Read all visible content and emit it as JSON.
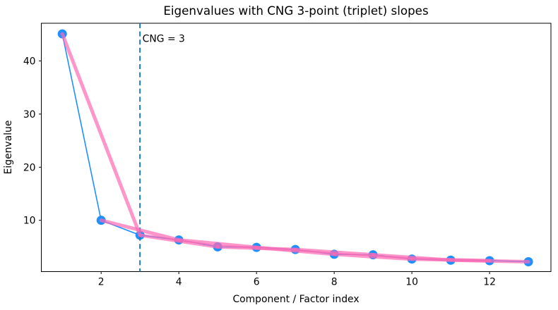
{
  "chart_data": {
    "type": "line",
    "title": "Eigenvalues with CNG 3-point (triplet) slopes",
    "xlabel": "Component / Factor index",
    "ylabel": "Eigenvalue",
    "x": [
      1,
      2,
      3,
      4,
      5,
      6,
      7,
      8,
      9,
      10,
      11,
      12,
      13
    ],
    "eigenvalues": [
      45.1,
      10.0,
      7.2,
      6.3,
      5.0,
      4.9,
      4.5,
      3.6,
      3.5,
      2.7,
      2.5,
      2.4,
      2.2
    ],
    "triplet_chord_index_pairs": [
      [
        1,
        3
      ],
      [
        2,
        4
      ],
      [
        3,
        5
      ],
      [
        4,
        6
      ],
      [
        5,
        7
      ],
      [
        6,
        8
      ],
      [
        7,
        9
      ],
      [
        8,
        10
      ],
      [
        9,
        11
      ],
      [
        10,
        12
      ],
      [
        11,
        13
      ]
    ],
    "annotation": {
      "text": "CNG = 3",
      "x": 3,
      "y": 43.6
    },
    "cutoff_line": {
      "x": 3,
      "style": "dashed"
    },
    "xticks": [
      2,
      4,
      6,
      8,
      10,
      12
    ],
    "yticks": [
      10,
      20,
      30,
      40
    ],
    "xlim": [
      0.46,
      13.58
    ],
    "ylim": [
      0.34,
      47.1
    ],
    "grid": false,
    "legend": null,
    "colors": {
      "scree_line": "#1E90FF",
      "marker": "#1E90FF",
      "chord": "#FF69B4",
      "chord_alpha": 0.7,
      "cutoff": "#1F77B4",
      "spine": "#000000",
      "background": "#ffffff"
    }
  }
}
